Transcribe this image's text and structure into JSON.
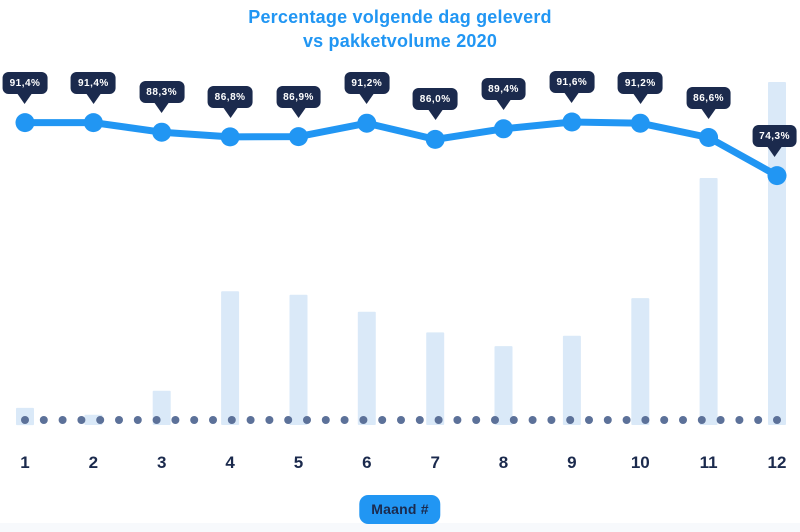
{
  "title": {
    "line1": "Percentage volgende dag geleverd",
    "line2": "vs pakketvolume 2020"
  },
  "x_axis": {
    "tick_labels": [
      "1",
      "2",
      "3",
      "4",
      "5",
      "6",
      "7",
      "8",
      "9",
      "10",
      "11",
      "12"
    ],
    "axis_label": "Maand #"
  },
  "chart_data": {
    "type": "combo",
    "title": "Percentage volgende dag geleverd vs pakketvolume 2020",
    "categories": [
      1,
      2,
      3,
      4,
      5,
      6,
      7,
      8,
      9,
      10,
      11,
      12
    ],
    "series": [
      {
        "name": "Percentage volgende dag geleverd",
        "type": "line",
        "unit": "%",
        "values": [
          91.4,
          91.4,
          88.3,
          86.8,
          86.9,
          91.2,
          86.0,
          89.4,
          91.6,
          91.2,
          86.6,
          74.3
        ],
        "point_labels": [
          "91,4%",
          "91,4%",
          "88,3%",
          "86,8%",
          "86,9%",
          "91,2%",
          "86,0%",
          "89,4%",
          "91,6%",
          "91,2%",
          "86,6%",
          "74,3%"
        ]
      },
      {
        "name": "Pakketvolume",
        "type": "bar",
        "unit": "relative index (max = 100)",
        "values": [
          5,
          3,
          10,
          39,
          38,
          33,
          27,
          23,
          26,
          37,
          72,
          100
        ]
      }
    ],
    "xlabel": "Maand #",
    "ylabel": "",
    "y_axis_visible": false,
    "legend": "none",
    "baseline_style": "dotted",
    "value_labels_shown": "line series only, in dark speech-bubble badges"
  },
  "colors": {
    "page_bg": "#ffffff",
    "accent_blue": "#2196f3",
    "navy": "#1b2a4d",
    "bar_fill": "#dae9f8",
    "baseline_dot": "#5c7199",
    "badge_text": "#ffffff"
  }
}
